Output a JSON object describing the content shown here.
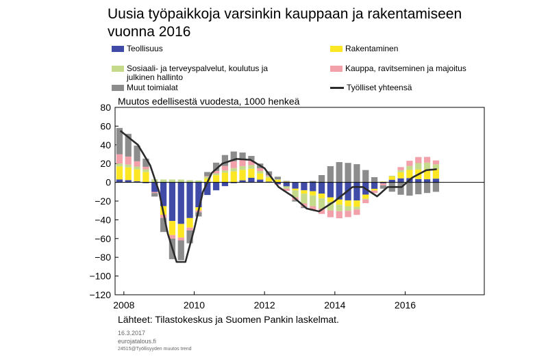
{
  "chart_data": {
    "type": "bar",
    "title": "Uusia työpaikkoja varsinkin kauppaan ja rakentamiseen vuonna 2016",
    "ylabel": "Muutos edellisestä vuodesta, 1000 henkeä",
    "ylim": [
      -120,
      80
    ],
    "yticks": [
      80,
      60,
      40,
      20,
      0,
      -20,
      -40,
      -60,
      -80,
      -100,
      -120
    ],
    "xlim": [
      2007.75,
      2018.25
    ],
    "xticks": [
      2008,
      2010,
      2012,
      2014,
      2016
    ],
    "grid": false,
    "legend_position": "top",
    "stacked": true,
    "colors": {
      "teollisuus": "#3f4ba6",
      "rakentaminen": "#fde724",
      "sosiaali": "#c5da8a",
      "kauppa": "#f2a0aa",
      "muut": "#8c8c8c",
      "total": "#2b2b2b"
    },
    "series": [
      {
        "name": "Teollisuus",
        "key": "teollisuus",
        "keypoints": [
          [
            2008.0,
            3
          ],
          [
            2008.6,
            0
          ],
          [
            2009.0,
            -15
          ],
          [
            2009.3,
            -40
          ],
          [
            2009.6,
            -45
          ],
          [
            2010.0,
            -35
          ],
          [
            2010.3,
            -15
          ],
          [
            2010.8,
            -5
          ],
          [
            2011.2,
            0
          ],
          [
            2011.6,
            5
          ],
          [
            2012.0,
            2
          ],
          [
            2012.5,
            -3
          ],
          [
            2013.0,
            -8
          ],
          [
            2013.5,
            -10
          ],
          [
            2014.0,
            -18
          ],
          [
            2014.6,
            -20
          ],
          [
            2015.0,
            -10
          ],
          [
            2015.5,
            2
          ],
          [
            2016.0,
            5
          ],
          [
            2016.5,
            3
          ],
          [
            2016.9,
            4
          ]
        ]
      },
      {
        "name": "Rakentaminen",
        "key": "rakentaminen",
        "keypoints": [
          [
            2008.0,
            14
          ],
          [
            2008.6,
            12
          ],
          [
            2009.0,
            -5
          ],
          [
            2009.3,
            -15
          ],
          [
            2009.6,
            -15
          ],
          [
            2010.0,
            -8
          ],
          [
            2010.3,
            3
          ],
          [
            2010.8,
            10
          ],
          [
            2011.2,
            12
          ],
          [
            2011.6,
            10
          ],
          [
            2012.0,
            5
          ],
          [
            2012.5,
            2
          ],
          [
            2013.0,
            -3
          ],
          [
            2013.5,
            -5
          ],
          [
            2014.0,
            -5
          ],
          [
            2014.6,
            -7
          ],
          [
            2015.0,
            -3
          ],
          [
            2015.5,
            2
          ],
          [
            2016.0,
            8
          ],
          [
            2016.5,
            11
          ],
          [
            2016.9,
            10
          ]
        ]
      },
      {
        "name": "Sosiaali- ja terveyspalvelut, koulutus ja julkinen hallinto",
        "key": "sosiaali",
        "keypoints": [
          [
            2008.0,
            3
          ],
          [
            2008.6,
            3
          ],
          [
            2009.0,
            3
          ],
          [
            2009.3,
            3
          ],
          [
            2009.6,
            3
          ],
          [
            2010.0,
            2
          ],
          [
            2010.3,
            2
          ],
          [
            2010.8,
            2
          ],
          [
            2011.2,
            4
          ],
          [
            2011.6,
            4
          ],
          [
            2012.0,
            2
          ],
          [
            2012.5,
            0
          ],
          [
            2013.0,
            -10
          ],
          [
            2013.5,
            -12
          ],
          [
            2014.0,
            -8
          ],
          [
            2014.6,
            -3
          ],
          [
            2015.0,
            0
          ],
          [
            2015.5,
            0
          ],
          [
            2016.0,
            3
          ],
          [
            2016.5,
            8
          ],
          [
            2016.9,
            5
          ]
        ]
      },
      {
        "name": "Kauppa, ravitseminen ja majoitus",
        "key": "kauppa",
        "keypoints": [
          [
            2008.0,
            10
          ],
          [
            2008.6,
            3
          ],
          [
            2009.0,
            -3
          ],
          [
            2009.3,
            -4
          ],
          [
            2009.6,
            -3
          ],
          [
            2010.0,
            -3
          ],
          [
            2010.3,
            0
          ],
          [
            2010.8,
            4
          ],
          [
            2011.2,
            8
          ],
          [
            2011.6,
            5
          ],
          [
            2012.0,
            2
          ],
          [
            2012.5,
            -2
          ],
          [
            2013.0,
            -3
          ],
          [
            2013.5,
            -5
          ],
          [
            2014.0,
            -8
          ],
          [
            2014.6,
            -6
          ],
          [
            2015.0,
            -3
          ],
          [
            2015.5,
            -2
          ],
          [
            2016.0,
            5
          ],
          [
            2016.5,
            7
          ],
          [
            2016.9,
            4
          ]
        ]
      },
      {
        "name": "Muut toimialat",
        "key": "muut",
        "keypoints": [
          [
            2008.0,
            28
          ],
          [
            2008.6,
            10
          ],
          [
            2009.0,
            -10
          ],
          [
            2009.3,
            -22
          ],
          [
            2009.6,
            -22
          ],
          [
            2010.0,
            -10
          ],
          [
            2010.3,
            3
          ],
          [
            2010.8,
            12
          ],
          [
            2011.2,
            10
          ],
          [
            2011.6,
            5
          ],
          [
            2012.0,
            5
          ],
          [
            2012.5,
            2
          ],
          [
            2013.0,
            -3
          ],
          [
            2013.5,
            3
          ],
          [
            2014.0,
            22
          ],
          [
            2014.6,
            20
          ],
          [
            2015.0,
            10
          ],
          [
            2015.5,
            -8
          ],
          [
            2016.0,
            -15
          ],
          [
            2016.5,
            -12
          ],
          [
            2016.9,
            -10
          ]
        ]
      },
      {
        "name": "Työlliset yhteensä",
        "key": "total",
        "type": "line",
        "keypoints": [
          [
            2007.9,
            55
          ],
          [
            2008.4,
            40
          ],
          [
            2008.75,
            18
          ],
          [
            2009.0,
            -10
          ],
          [
            2009.25,
            -55
          ],
          [
            2009.5,
            -85
          ],
          [
            2009.75,
            -85
          ],
          [
            2010.0,
            -50
          ],
          [
            2010.25,
            -10
          ],
          [
            2010.5,
            10
          ],
          [
            2010.8,
            20
          ],
          [
            2011.2,
            25
          ],
          [
            2011.6,
            24
          ],
          [
            2012.0,
            15
          ],
          [
            2012.4,
            -5
          ],
          [
            2012.8,
            -15
          ],
          [
            2013.2,
            -28
          ],
          [
            2013.55,
            -31
          ],
          [
            2014.0,
            -20
          ],
          [
            2014.5,
            -5
          ],
          [
            2014.8,
            -5
          ],
          [
            2015.2,
            -15
          ],
          [
            2015.5,
            -5
          ],
          [
            2015.9,
            -5
          ],
          [
            2016.2,
            5
          ],
          [
            2016.6,
            13
          ],
          [
            2016.9,
            14
          ]
        ]
      }
    ]
  },
  "legend": {
    "items": [
      {
        "label": "Teollisuus"
      },
      {
        "label": "Rakentaminen"
      },
      {
        "label": "Sosiaali- ja terveyspalvelut, koulutus ja julkinen hallinto"
      },
      {
        "label": "Kauppa, ravitseminen ja majoitus"
      },
      {
        "label": "Muut toimialat"
      },
      {
        "label": "Työlliset yhteensä"
      }
    ]
  },
  "footer": {
    "source": "Lähteet: Tilastokeskus ja Suomen Pankin laskelmat.",
    "date": "16.3.2017",
    "site": "eurojatalous.fi",
    "code": "24515@Työllisyyden muutos trend"
  }
}
